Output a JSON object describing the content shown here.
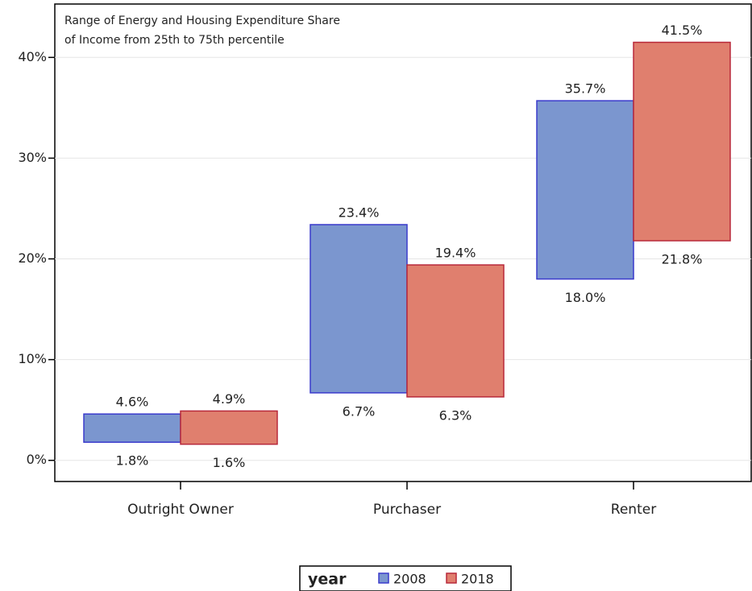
{
  "chart_data": {
    "type": "range_bar",
    "annotation": [
      "Range of Energy and Housing Expenditure Share",
      "of Income from 25th to 75th percentile"
    ],
    "categories": [
      "Outright Owner",
      "Purchaser",
      "Renter"
    ],
    "series": [
      {
        "name": "2008",
        "color": "#7b96cf",
        "edge_color": "#3a3acc",
        "low": [
          1.8,
          6.7,
          18.0
        ],
        "high": [
          4.6,
          23.4,
          35.7
        ],
        "low_labels": [
          "1.8%",
          "6.7%",
          "18.0%"
        ],
        "high_labels": [
          "4.6%",
          "23.4%",
          "35.7%"
        ]
      },
      {
        "name": "2018",
        "color": "#e07f6e",
        "edge_color": "#b8283a",
        "low": [
          1.6,
          6.3,
          21.8
        ],
        "high": [
          4.9,
          19.4,
          41.5
        ],
        "low_labels": [
          "1.6%",
          "6.3%",
          "21.8%"
        ],
        "high_labels": [
          "4.9%",
          "19.4%",
          "41.5%"
        ]
      }
    ],
    "ylim": [
      -2.1,
      45.3
    ],
    "yticks": [
      {
        "value": 0,
        "label": "0%"
      },
      {
        "value": 10,
        "label": "10%"
      },
      {
        "value": 20,
        "label": "20%"
      },
      {
        "value": 30,
        "label": "30%"
      },
      {
        "value": 40,
        "label": "40%"
      }
    ],
    "grid": true,
    "legend_title": "year",
    "legend_position": "bottom"
  }
}
